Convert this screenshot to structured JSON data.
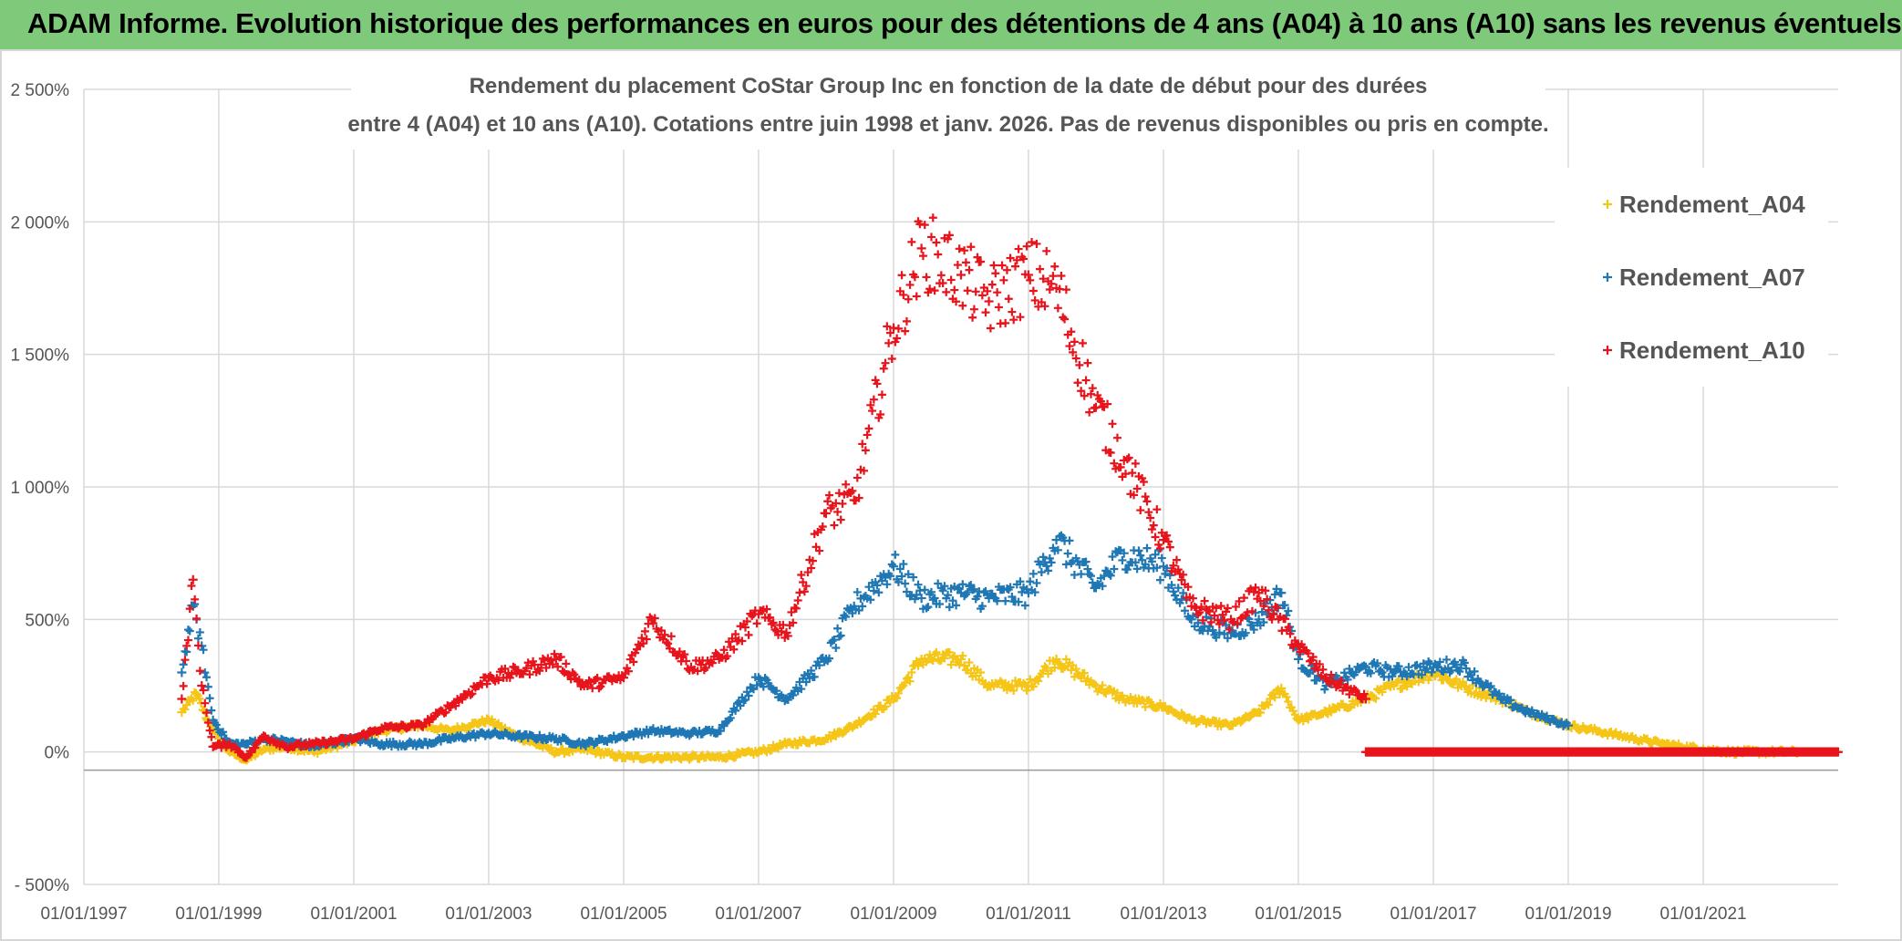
{
  "header": {
    "title": "ADAM Informe. Evolution historique des performances en euros pour des détentions de 4 ans (A04) à 10 ans (A10) sans les revenus éventuels",
    "background": "#7fc97a"
  },
  "chart_data": {
    "type": "scatter",
    "title_lines": [
      "Rendement du placement CoStar Group Inc en fonction de la date de début pour des durées",
      "entre 4 (A04) et 10 ans (A10). Cotations entre juin 1998 et janv. 2026. Pas de revenus disponibles ou pris en compte."
    ],
    "xlabel": "",
    "ylabel": "",
    "x_range": [
      "1997-01-01",
      "2023-01-01"
    ],
    "x_tick_labels": [
      "01/01/1997",
      "01/01/1999",
      "01/01/2001",
      "01/01/2003",
      "01/01/2005",
      "01/01/2007",
      "01/01/2009",
      "01/01/2011",
      "01/01/2013",
      "01/01/2015",
      "01/01/2017",
      "01/01/2019",
      "01/01/2021"
    ],
    "x_tick_dates": [
      "1997-01-01",
      "1999-01-01",
      "2001-01-01",
      "2003-01-01",
      "2005-01-01",
      "2007-01-01",
      "2009-01-01",
      "2011-01-01",
      "2013-01-01",
      "2015-01-01",
      "2017-01-01",
      "2019-01-01",
      "2021-01-01"
    ],
    "y_range": [
      -500,
      2500
    ],
    "y_ticks": [
      -500,
      0,
      500,
      1000,
      1500,
      2000,
      2500
    ],
    "y_tick_labels": [
      "- 500%",
      "0%",
      "500%",
      "1 000%",
      "1 500%",
      "2 000%",
      "2 500%"
    ],
    "grid": true,
    "legend_position": "top-right",
    "marker": "+",
    "series": [
      {
        "name": "Rendement_A04",
        "color": "#f5c518",
        "x": [
          "1998-06-15",
          "1998-09-01",
          "1998-11-01",
          "1999-01-01",
          "1999-03-01",
          "1999-06-01",
          "1999-09-01",
          "2000-01-01",
          "2000-06-01",
          "2001-01-01",
          "2001-06-01",
          "2002-01-01",
          "2002-06-01",
          "2003-01-01",
          "2003-06-01",
          "2004-01-01",
          "2004-06-01",
          "2005-01-01",
          "2005-06-01",
          "2006-01-01",
          "2006-06-01",
          "2007-01-01",
          "2007-06-01",
          "2008-01-01",
          "2008-06-01",
          "2009-01-01",
          "2009-06-01",
          "2010-01-01",
          "2010-06-01",
          "2011-01-01",
          "2011-06-01",
          "2012-01-01",
          "2012-06-01",
          "2013-01-01",
          "2013-06-01",
          "2014-01-01",
          "2014-06-01",
          "2014-10-01",
          "2015-01-01",
          "2015-06-01",
          "2016-01-01",
          "2016-06-01",
          "2017-01-01",
          "2017-06-01",
          "2018-01-01",
          "2018-06-01",
          "2019-01-01",
          "2019-06-01",
          "2020-01-01",
          "2020-06-01",
          "2021-01-01",
          "2021-06-01",
          "2022-01-01",
          "2022-06-01"
        ],
        "y": [
          150,
          220,
          120,
          50,
          0,
          -30,
          10,
          20,
          0,
          40,
          80,
          100,
          80,
          120,
          60,
          0,
          10,
          -20,
          -20,
          -20,
          -20,
          0,
          30,
          50,
          100,
          200,
          350,
          350,
          250,
          250,
          350,
          250,
          200,
          170,
          120,
          100,
          150,
          240,
          120,
          150,
          200,
          250,
          300,
          250,
          200,
          150,
          100,
          80,
          50,
          30,
          10,
          0,
          0,
          0
        ]
      },
      {
        "name": "Rendement_A07",
        "color": "#1f77b4",
        "x": [
          "1998-06-15",
          "1998-08-15",
          "1998-10-01",
          "1998-12-01",
          "1999-03-01",
          "1999-06-01",
          "1999-09-01",
          "2000-01-01",
          "2000-06-01",
          "2001-01-01",
          "2001-06-01",
          "2002-01-01",
          "2002-06-01",
          "2003-01-01",
          "2003-06-01",
          "2004-01-01",
          "2004-06-01",
          "2005-01-01",
          "2005-06-01",
          "2006-01-01",
          "2006-06-01",
          "2007-01-01",
          "2007-06-01",
          "2008-01-01",
          "2008-06-01",
          "2009-01-01",
          "2009-06-01",
          "2010-01-01",
          "2010-06-01",
          "2011-01-01",
          "2011-06-01",
          "2012-01-01",
          "2012-06-01",
          "2013-01-01",
          "2013-06-01",
          "2014-01-01",
          "2014-06-01",
          "2014-10-01",
          "2015-01-01",
          "2015-06-01",
          "2016-01-01",
          "2016-06-01",
          "2017-01-01",
          "2017-06-01",
          "2018-01-01",
          "2018-06-01",
          "2019-01-01"
        ],
        "y": [
          300,
          550,
          400,
          120,
          30,
          30,
          50,
          40,
          20,
          50,
          30,
          30,
          50,
          70,
          60,
          50,
          30,
          60,
          80,
          70,
          80,
          280,
          200,
          350,
          550,
          700,
          580,
          600,
          580,
          600,
          800,
          620,
          750,
          700,
          500,
          450,
          500,
          600,
          350,
          250,
          320,
          300,
          320,
          330,
          200,
          150,
          100
        ]
      },
      {
        "name": "Rendement_A10",
        "color": "#e8141c",
        "x": [
          "1998-06-15",
          "1998-08-15",
          "1998-10-01",
          "1998-12-01",
          "1999-03-01",
          "1999-06-01",
          "1999-09-01",
          "2000-01-01",
          "2000-06-01",
          "2001-01-01",
          "2001-06-01",
          "2002-01-01",
          "2002-06-01",
          "2003-01-01",
          "2003-06-01",
          "2004-01-01",
          "2004-06-01",
          "2005-01-01",
          "2005-06-01",
          "2006-01-01",
          "2006-06-01",
          "2007-01-01",
          "2007-06-01",
          "2008-01-01",
          "2008-06-01",
          "2009-01-01",
          "2009-06-01",
          "2010-01-01",
          "2010-06-01",
          "2011-01-01",
          "2011-06-01",
          "2012-01-01",
          "2012-06-01",
          "2013-01-01",
          "2013-06-01",
          "2014-01-01",
          "2014-06-01",
          "2015-01-01",
          "2015-06-01",
          "2016-01-01"
        ],
        "y": [
          200,
          650,
          250,
          20,
          30,
          -20,
          60,
          20,
          30,
          50,
          90,
          100,
          170,
          280,
          300,
          350,
          250,
          280,
          500,
          320,
          350,
          520,
          450,
          900,
          950,
          1600,
          1900,
          1800,
          1700,
          1800,
          1750,
          1300,
          1100,
          800,
          550,
          500,
          600,
          400,
          280,
          200
        ]
      },
      {
        "name": "",
        "color": "#e8141c",
        "x": [
          "2016-01-01",
          "2023-01-01"
        ],
        "y": [
          0,
          0
        ],
        "note_ref": "Rendement_A10"
      }
    ]
  }
}
